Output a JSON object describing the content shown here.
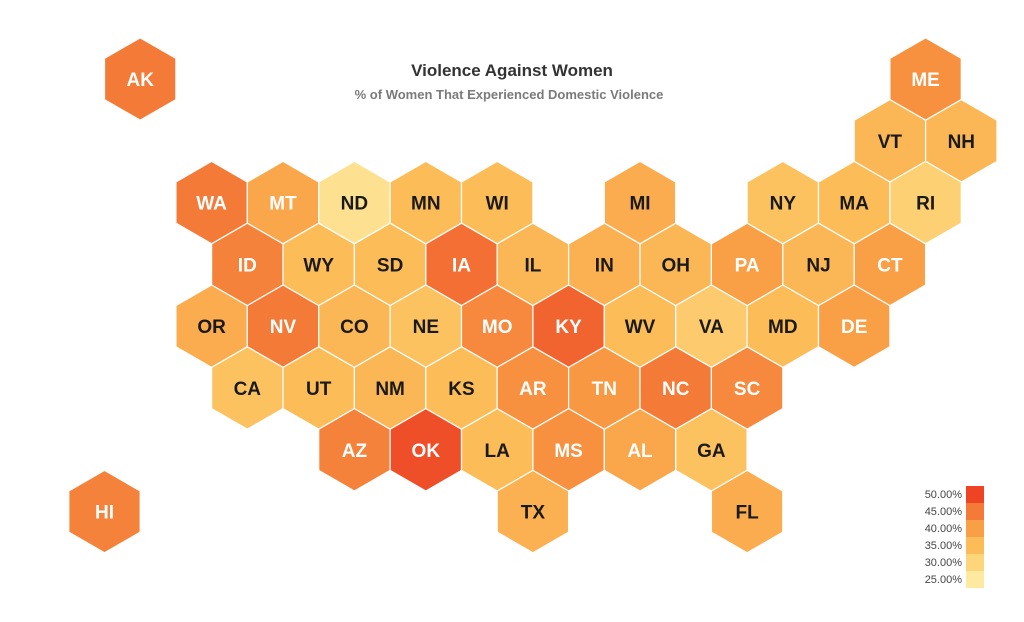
{
  "chart_data": {
    "type": "hexbin-map",
    "title": "Violence Against Women",
    "subtitle": "% of Women That Experienced Domestic Violence",
    "value_unit": "%",
    "color_scale": [
      {
        "label": "25.00%",
        "value": 25,
        "color": "#fde9a0"
      },
      {
        "label": "30.00%",
        "value": 30,
        "color": "#fdd57a"
      },
      {
        "label": "35.00%",
        "value": 35,
        "color": "#fcbd59"
      },
      {
        "label": "40.00%",
        "value": 40,
        "color": "#f9a046"
      },
      {
        "label": "45.00%",
        "value": 45,
        "color": "#f47a37"
      },
      {
        "label": "50.00%",
        "value": 50,
        "color": "#ee4424"
      }
    ],
    "states": [
      {
        "abbr": "AK",
        "row": 0,
        "col": 1,
        "value": 45
      },
      {
        "abbr": "ME",
        "row": 0,
        "col": 12,
        "value": 42
      },
      {
        "abbr": "VT",
        "row": 1,
        "col": 11,
        "value": 36
      },
      {
        "abbr": "NH",
        "row": 1,
        "col": 12,
        "value": 36
      },
      {
        "abbr": "WA",
        "row": 2,
        "col": 2,
        "value": 45
      },
      {
        "abbr": "MT",
        "row": 2,
        "col": 3,
        "value": 39
      },
      {
        "abbr": "ND",
        "row": 2,
        "col": 4,
        "value": 27
      },
      {
        "abbr": "MN",
        "row": 2,
        "col": 5,
        "value": 35
      },
      {
        "abbr": "WI",
        "row": 2,
        "col": 6,
        "value": 35
      },
      {
        "abbr": "MI",
        "row": 2,
        "col": 8,
        "value": 38
      },
      {
        "abbr": "NY",
        "row": 2,
        "col": 10,
        "value": 34
      },
      {
        "abbr": "MA",
        "row": 2,
        "col": 11,
        "value": 35
      },
      {
        "abbr": "RI",
        "row": 2,
        "col": 12,
        "value": 31
      },
      {
        "abbr": "ID",
        "row": 3,
        "col": 2,
        "value": 44
      },
      {
        "abbr": "WY",
        "row": 3,
        "col": 3,
        "value": 35
      },
      {
        "abbr": "SD",
        "row": 3,
        "col": 4,
        "value": 35
      },
      {
        "abbr": "IA",
        "row": 3,
        "col": 5,
        "value": 46
      },
      {
        "abbr": "IL",
        "row": 3,
        "col": 6,
        "value": 36
      },
      {
        "abbr": "IN",
        "row": 3,
        "col": 7,
        "value": 37
      },
      {
        "abbr": "OH",
        "row": 3,
        "col": 8,
        "value": 36
      },
      {
        "abbr": "PA",
        "row": 3,
        "col": 9,
        "value": 40
      },
      {
        "abbr": "NJ",
        "row": 3,
        "col": 10,
        "value": 36
      },
      {
        "abbr": "CT",
        "row": 3,
        "col": 11,
        "value": 40
      },
      {
        "abbr": "OR",
        "row": 4,
        "col": 2,
        "value": 38
      },
      {
        "abbr": "NV",
        "row": 4,
        "col": 3,
        "value": 45
      },
      {
        "abbr": "CO",
        "row": 4,
        "col": 4,
        "value": 36
      },
      {
        "abbr": "NE",
        "row": 4,
        "col": 5,
        "value": 34
      },
      {
        "abbr": "MO",
        "row": 4,
        "col": 6,
        "value": 43
      },
      {
        "abbr": "KY",
        "row": 4,
        "col": 7,
        "value": 47
      },
      {
        "abbr": "WV",
        "row": 4,
        "col": 8,
        "value": 35
      },
      {
        "abbr": "VA",
        "row": 4,
        "col": 9,
        "value": 32
      },
      {
        "abbr": "MD",
        "row": 4,
        "col": 10,
        "value": 35
      },
      {
        "abbr": "DE",
        "row": 4,
        "col": 11,
        "value": 40
      },
      {
        "abbr": "CA",
        "row": 5,
        "col": 2,
        "value": 34
      },
      {
        "abbr": "UT",
        "row": 5,
        "col": 3,
        "value": 35
      },
      {
        "abbr": "NM",
        "row": 5,
        "col": 4,
        "value": 36
      },
      {
        "abbr": "KS",
        "row": 5,
        "col": 5,
        "value": 35
      },
      {
        "abbr": "AR",
        "row": 5,
        "col": 6,
        "value": 42
      },
      {
        "abbr": "TN",
        "row": 5,
        "col": 7,
        "value": 41
      },
      {
        "abbr": "NC",
        "row": 5,
        "col": 8,
        "value": 45
      },
      {
        "abbr": "SC",
        "row": 5,
        "col": 9,
        "value": 43
      },
      {
        "abbr": "AZ",
        "row": 6,
        "col": 4,
        "value": 44
      },
      {
        "abbr": "OK",
        "row": 6,
        "col": 5,
        "value": 49
      },
      {
        "abbr": "LA",
        "row": 6,
        "col": 6,
        "value": 35
      },
      {
        "abbr": "MS",
        "row": 6,
        "col": 7,
        "value": 42
      },
      {
        "abbr": "AL",
        "row": 6,
        "col": 8,
        "value": 39
      },
      {
        "abbr": "GA",
        "row": 6,
        "col": 9,
        "value": 34
      },
      {
        "abbr": "HI",
        "row": 7,
        "col": 0,
        "value": 44
      },
      {
        "abbr": "TX",
        "row": 7,
        "col": 6,
        "value": 37
      },
      {
        "abbr": "FL",
        "row": 7,
        "col": 9,
        "value": 38
      }
    ]
  }
}
